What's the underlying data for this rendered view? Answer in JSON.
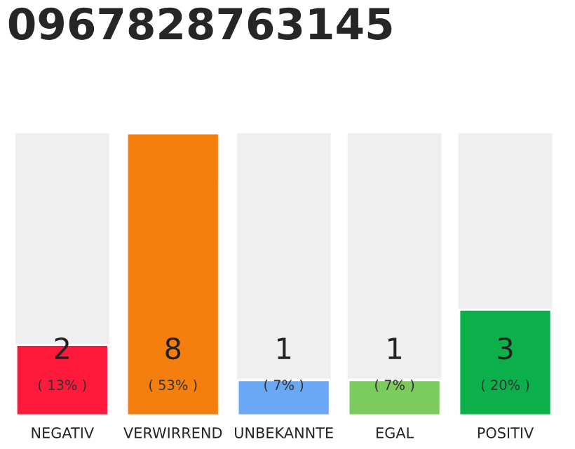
{
  "chart_data": {
    "type": "bar",
    "title": "0967828763145",
    "categories": [
      "NEGATIV",
      "VERWIRREND",
      "UNBEKANNTE",
      "EGAL",
      "POSITIV"
    ],
    "values": [
      2,
      8,
      1,
      1,
      3
    ],
    "colors": [
      "#ff1a3c",
      "#f47f0f",
      "#6aa7f4",
      "#7ccb5d",
      "#0cb04a"
    ],
    "data_labels": true,
    "annotations": [
      {
        "text": "( 13% )",
        "x": "NEGATIV",
        "y": 0
      },
      {
        "text": "( 53% )",
        "x": "VERWIRREND",
        "y": 0
      },
      {
        "text": "( 7% )",
        "x": "UNBEKANNTE",
        "y": 0
      },
      {
        "text": "( 7% )",
        "x": "EGAL",
        "y": 0
      },
      {
        "text": "( 20% )",
        "x": "POSITIV",
        "y": 0
      }
    ],
    "tick_labels": "x",
    "grid": false
  }
}
